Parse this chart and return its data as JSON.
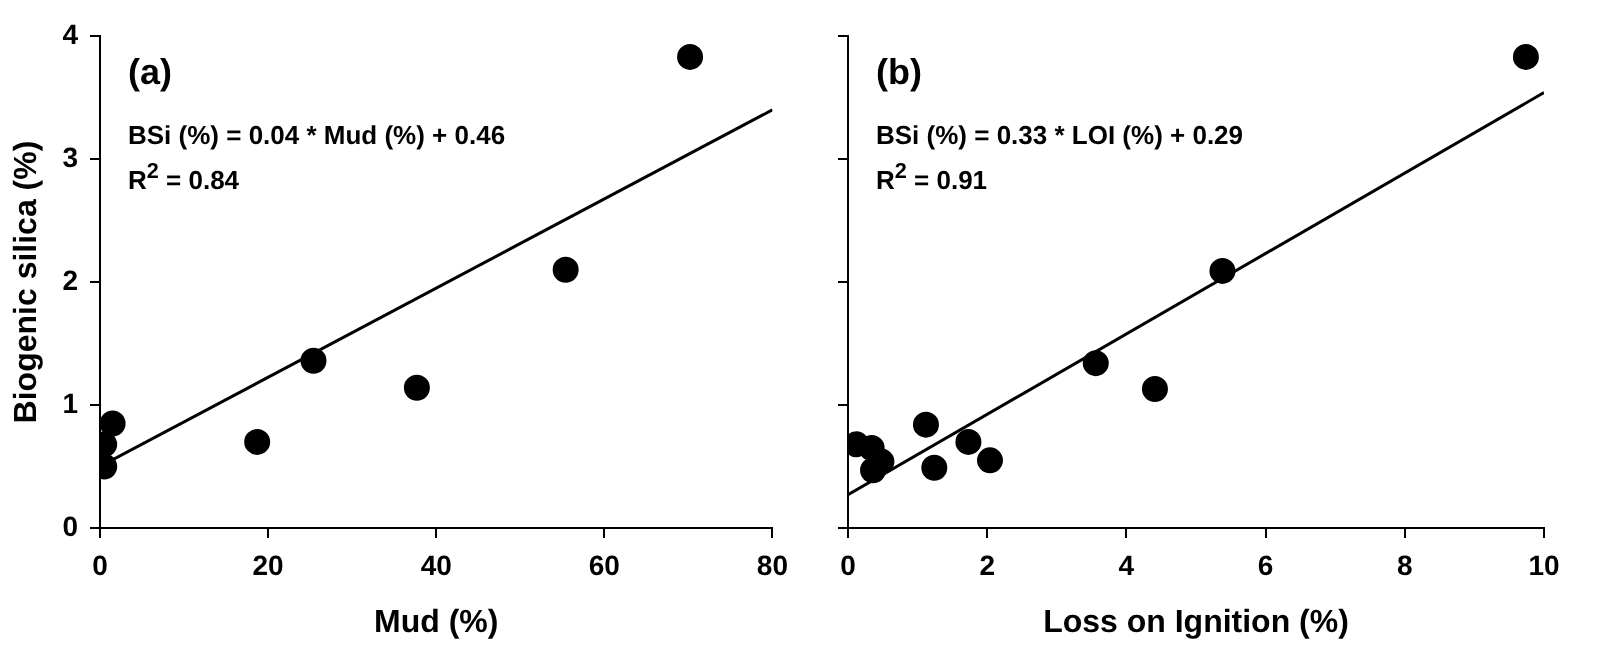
{
  "chart_data": [
    {
      "type": "scatter",
      "xlabel": "Mud (%)",
      "ylabel": "Biogenic silica (%)",
      "xlim": [
        0,
        80
      ],
      "xticks": [
        0,
        20,
        40,
        60,
        80
      ],
      "ylim": [
        0,
        4
      ],
      "yticks": [
        0,
        1,
        2,
        3,
        4
      ],
      "grid": false,
      "legend": false,
      "annotations": [
        "(a)",
        "BSi (%) = 0.04 * Mud (%) + 0.46",
        "R$^{2}$ = 0.84"
      ],
      "series": [
        {
          "color": "#000000",
          "marker": "circle",
          "x": [
            70.2,
            55.4,
            25.4,
            37.7,
            18.7,
            1.5,
            0.5,
            0.5
          ],
          "values": [
            3.83,
            2.1,
            1.36,
            1.14,
            0.7,
            0.85,
            0.68,
            0.5
          ]
        },
        {
          "type": "line",
          "color": "#000000",
          "marker": "none",
          "x": [
            0,
            80
          ],
          "values": [
            0.5,
            3.4
          ]
        }
      ]
    },
    {
      "type": "scatter",
      "xlabel": "Loss on Ignition (%)",
      "xlim": [
        0,
        10
      ],
      "xticks": [
        0,
        2,
        4,
        6,
        8,
        10
      ],
      "ylim": [
        0,
        4
      ],
      "yticks": [
        0,
        1,
        2,
        3,
        4
      ],
      "tick_labels": "x",
      "grid": false,
      "legend": false,
      "annotations": [
        "(b)",
        "BSi (%) = 0.33 * LOI (%) + 0.29",
        "R$^{2}$ = 0.91"
      ],
      "series": [
        {
          "color": "#000000",
          "marker": "circle",
          "x": [
            9.74,
            5.38,
            3.56,
            4.41,
            1.12,
            1.73,
            2.04,
            1.24,
            0.12,
            0.34,
            0.48,
            0.36
          ],
          "values": [
            3.83,
            2.09,
            1.34,
            1.13,
            0.84,
            0.7,
            0.55,
            0.49,
            0.68,
            0.65,
            0.54,
            0.47
          ]
        },
        {
          "type": "line",
          "color": "#000000",
          "marker": "none",
          "x": [
            0,
            10
          ],
          "values": [
            0.27,
            3.54
          ]
        }
      ]
    }
  ]
}
